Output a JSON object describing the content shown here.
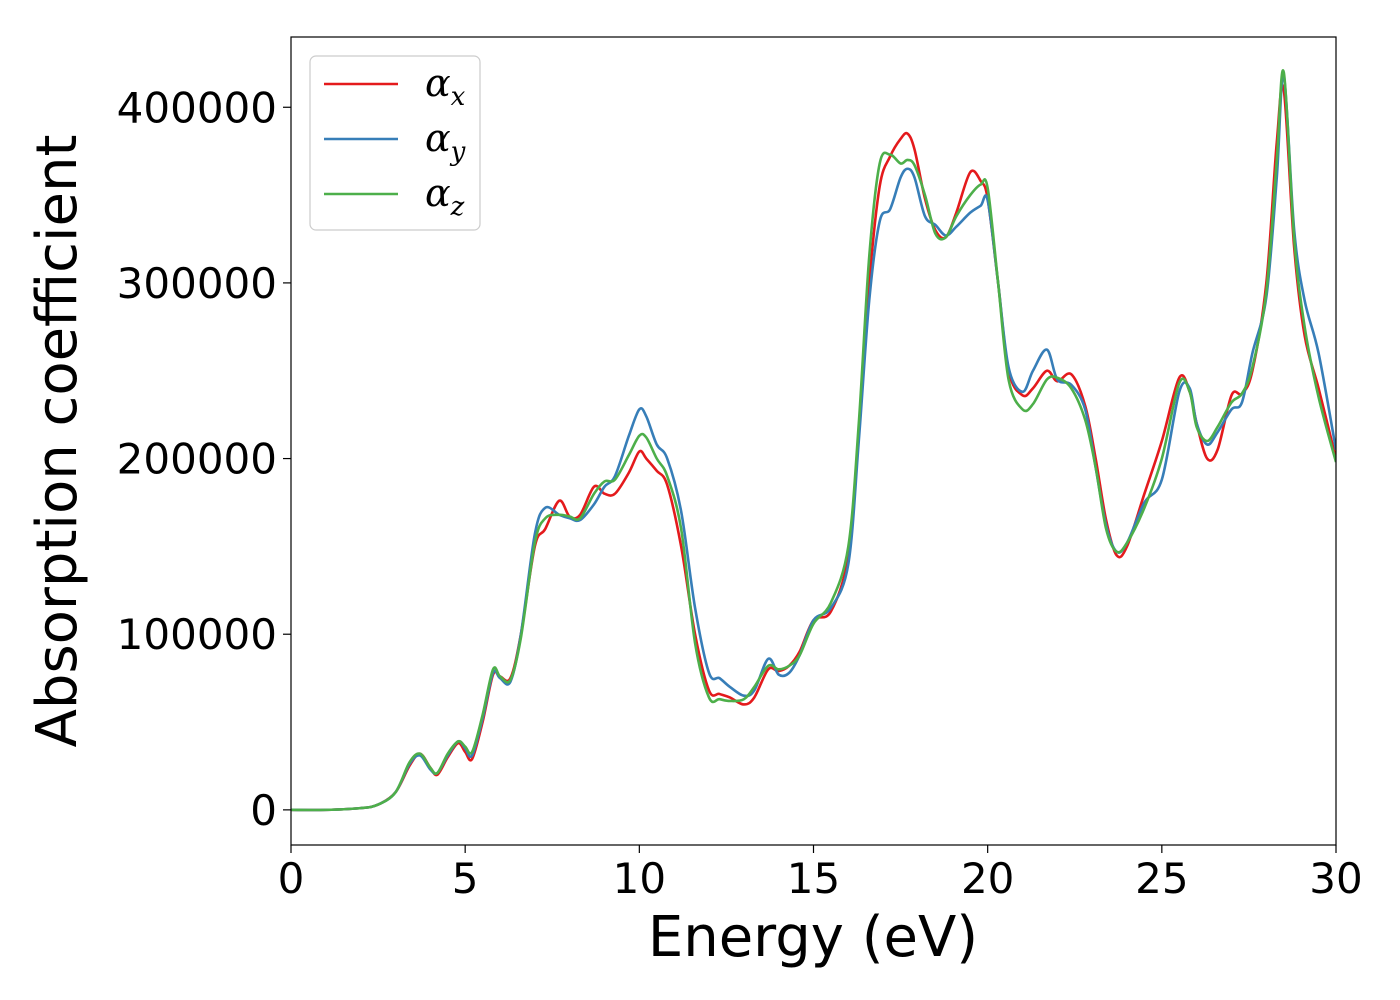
{
  "chart_data": {
    "type": "line",
    "title": "",
    "xlabel": "Energy (eV)",
    "ylabel": "Absorption coefficient",
    "xlim": [
      0,
      30
    ],
    "ylim": [
      -20000,
      440000
    ],
    "xticks": [
      0,
      5,
      10,
      15,
      20,
      25,
      30
    ],
    "yticks": [
      0,
      100000,
      200000,
      300000,
      400000
    ],
    "grid": false,
    "legend_position": "top-left",
    "series": [
      {
        "name": "α",
        "subscript": "x",
        "color": "#e41a1c",
        "x": [
          0,
          1,
          2,
          2.5,
          3,
          3.4,
          3.7,
          4.0,
          4.2,
          4.5,
          4.8,
          5.0,
          5.2,
          5.5,
          5.8,
          6.0,
          6.3,
          6.6,
          7.0,
          7.3,
          7.7,
          8.0,
          8.3,
          8.7,
          9.0,
          9.3,
          9.7,
          10.0,
          10.2,
          10.5,
          10.8,
          11.2,
          11.6,
          12.0,
          12.3,
          12.6,
          13.0,
          13.3,
          13.7,
          14.0,
          14.3,
          14.6,
          15.0,
          15.5,
          16.0,
          16.3,
          16.6,
          16.9,
          17.2,
          17.5,
          17.7,
          17.9,
          18.2,
          18.5,
          18.8,
          19.1,
          19.5,
          19.8,
          20.0,
          20.3,
          20.6,
          21.0,
          21.3,
          21.7,
          22.0,
          22.4,
          22.8,
          23.1,
          23.4,
          23.7,
          24.0,
          24.5,
          25.0,
          25.5,
          25.8,
          26.0,
          26.3,
          26.6,
          27.0,
          27.3,
          27.6,
          28.0,
          28.3,
          28.5,
          28.8,
          29.1,
          29.5,
          30.0
        ],
        "y": [
          0,
          0,
          1000,
          3000,
          10000,
          25000,
          32000,
          24000,
          20000,
          30000,
          38000,
          33000,
          29000,
          50000,
          77000,
          76000,
          75000,
          100000,
          150000,
          160000,
          176000,
          167000,
          168000,
          184000,
          180000,
          180000,
          192000,
          204000,
          200000,
          193000,
          185000,
          150000,
          100000,
          68000,
          66000,
          64000,
          60000,
          64000,
          80000,
          79000,
          82000,
          90000,
          108000,
          113000,
          145000,
          215000,
          300000,
          355000,
          372000,
          382000,
          385000,
          376000,
          348000,
          330000,
          326000,
          340000,
          363000,
          358000,
          348000,
          300000,
          250000,
          236000,
          240000,
          250000,
          244000,
          248000,
          230000,
          200000,
          165000,
          145000,
          150000,
          180000,
          210000,
          246000,
          238000,
          220000,
          200000,
          205000,
          236000,
          237000,
          250000,
          300000,
          380000,
          410000,
          320000,
          270000,
          240000,
          200000
        ]
      },
      {
        "name": "α",
        "subscript": "y",
        "color": "#377eb8",
        "x": [
          0,
          1,
          2,
          2.5,
          3,
          3.4,
          3.7,
          4.0,
          4.2,
          4.5,
          4.8,
          5.0,
          5.2,
          5.5,
          5.8,
          6.0,
          6.3,
          6.6,
          7.0,
          7.3,
          7.7,
          8.0,
          8.3,
          8.7,
          9.0,
          9.3,
          9.7,
          10.0,
          10.2,
          10.5,
          10.8,
          11.2,
          11.6,
          12.0,
          12.3,
          12.6,
          13.0,
          13.3,
          13.7,
          14.0,
          14.3,
          14.6,
          15.0,
          15.5,
          16.0,
          16.3,
          16.6,
          16.9,
          17.2,
          17.5,
          17.7,
          17.9,
          18.2,
          18.5,
          18.8,
          19.1,
          19.5,
          19.8,
          20.0,
          20.3,
          20.6,
          21.0,
          21.3,
          21.7,
          22.0,
          22.4,
          22.8,
          23.1,
          23.4,
          23.7,
          24.0,
          24.5,
          25.0,
          25.5,
          25.8,
          26.0,
          26.3,
          26.6,
          27.0,
          27.3,
          27.6,
          28.0,
          28.3,
          28.5,
          28.8,
          29.1,
          29.5,
          30.0
        ],
        "y": [
          0,
          0,
          1000,
          3000,
          10000,
          26000,
          31000,
          23000,
          21000,
          31000,
          39000,
          35000,
          31000,
          52000,
          78000,
          75000,
          73000,
          100000,
          157000,
          172000,
          168000,
          166000,
          165000,
          174000,
          184000,
          190000,
          213000,
          228000,
          224000,
          208000,
          200000,
          170000,
          115000,
          78000,
          75000,
          70000,
          65000,
          68000,
          86000,
          77000,
          78000,
          88000,
          108000,
          115000,
          140000,
          210000,
          290000,
          335000,
          342000,
          360000,
          365000,
          360000,
          338000,
          333000,
          327000,
          332000,
          340000,
          344000,
          347000,
          300000,
          252000,
          238000,
          250000,
          262000,
          245000,
          242000,
          228000,
          195000,
          162000,
          147000,
          152000,
          175000,
          188000,
          238000,
          240000,
          220000,
          208000,
          215000,
          228000,
          232000,
          260000,
          292000,
          360000,
          418000,
          330000,
          290000,
          260000,
          205000
        ]
      },
      {
        "name": "α",
        "subscript": "z",
        "color": "#4daf4a",
        "x": [
          0,
          1,
          2,
          2.5,
          3,
          3.4,
          3.7,
          4.0,
          4.2,
          4.5,
          4.8,
          5.0,
          5.2,
          5.5,
          5.8,
          6.0,
          6.3,
          6.6,
          7.0,
          7.3,
          7.7,
          8.0,
          8.3,
          8.7,
          9.0,
          9.3,
          9.7,
          10.0,
          10.2,
          10.5,
          10.8,
          11.2,
          11.6,
          12.0,
          12.3,
          12.6,
          13.0,
          13.3,
          13.7,
          14.0,
          14.3,
          14.6,
          15.0,
          15.5,
          16.0,
          16.3,
          16.6,
          16.9,
          17.2,
          17.5,
          17.7,
          17.9,
          18.2,
          18.5,
          18.8,
          19.1,
          19.5,
          19.8,
          20.0,
          20.3,
          20.6,
          21.0,
          21.3,
          21.7,
          22.0,
          22.4,
          22.8,
          23.1,
          23.4,
          23.7,
          24.0,
          24.5,
          25.0,
          25.5,
          25.8,
          26.0,
          26.3,
          26.6,
          27.0,
          27.3,
          27.6,
          28.0,
          28.3,
          28.5,
          28.8,
          29.1,
          29.5,
          30.0
        ],
        "y": [
          0,
          0,
          1000,
          3000,
          10000,
          27000,
          32000,
          24000,
          21000,
          32000,
          39000,
          36000,
          33000,
          54000,
          80000,
          76000,
          74000,
          98000,
          152000,
          166000,
          168000,
          167000,
          166000,
          180000,
          187000,
          188000,
          202000,
          213000,
          212000,
          200000,
          190000,
          160000,
          95000,
          64000,
          63000,
          62000,
          63000,
          70000,
          82000,
          80000,
          82000,
          88000,
          106000,
          118000,
          150000,
          220000,
          315000,
          368000,
          373000,
          368000,
          370000,
          367000,
          350000,
          328000,
          326000,
          338000,
          350000,
          356000,
          354000,
          300000,
          245000,
          228000,
          231000,
          245000,
          246000,
          240000,
          222000,
          195000,
          160000,
          147000,
          152000,
          172000,
          200000,
          243000,
          238000,
          218000,
          210000,
          218000,
          232000,
          237000,
          252000,
          295000,
          370000,
          420000,
          325000,
          275000,
          235000,
          198000
        ]
      }
    ]
  }
}
